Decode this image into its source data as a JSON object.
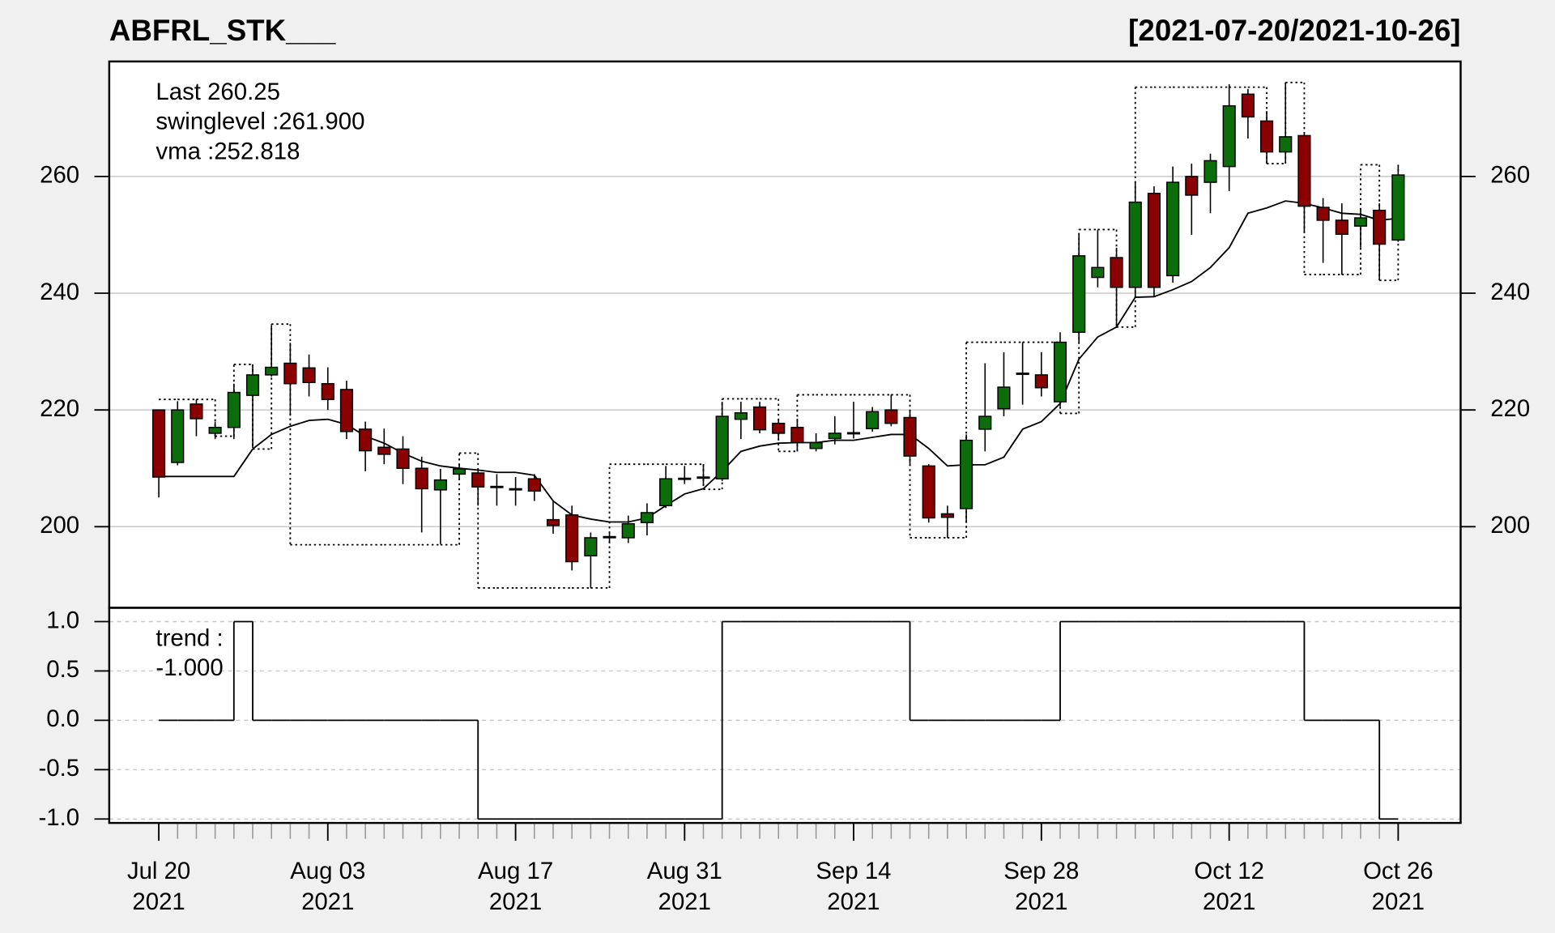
{
  "chart_data": [
    {
      "type": "candlestick",
      "title": "ABFRL_STK___",
      "subtitle": "[2021-07-20/2021-10-26]",
      "x": [
        "2021-07-20",
        "2021-07-22",
        "2021-07-23",
        "2021-07-26",
        "2021-07-27",
        "2021-07-28",
        "2021-07-29",
        "2021-07-30",
        "2021-08-02",
        "2021-08-03",
        "2021-08-04",
        "2021-08-05",
        "2021-08-06",
        "2021-08-09",
        "2021-08-10",
        "2021-08-11",
        "2021-08-12",
        "2021-08-13",
        "2021-08-16",
        "2021-08-17",
        "2021-08-18",
        "2021-08-20",
        "2021-08-23",
        "2021-08-24",
        "2021-08-25",
        "2021-08-26",
        "2021-08-27",
        "2021-08-30",
        "2021-08-31",
        "2021-09-01",
        "2021-09-02",
        "2021-09-03",
        "2021-09-06",
        "2021-09-07",
        "2021-09-08",
        "2021-09-09",
        "2021-09-13",
        "2021-09-14",
        "2021-09-15",
        "2021-09-16",
        "2021-09-17",
        "2021-09-20",
        "2021-09-21",
        "2021-09-22",
        "2021-09-23",
        "2021-09-24",
        "2021-09-27",
        "2021-09-28",
        "2021-09-29",
        "2021-09-30",
        "2021-10-01",
        "2021-10-04",
        "2021-10-05",
        "2021-10-06",
        "2021-10-07",
        "2021-10-08",
        "2021-10-11",
        "2021-10-12",
        "2021-10-13",
        "2021-10-14",
        "2021-10-18",
        "2021-10-19",
        "2021-10-20",
        "2021-10-21",
        "2021-10-22",
        "2021-10-25",
        "2021-10-26"
      ],
      "open": [
        220,
        211,
        221,
        216,
        217,
        222.5,
        226,
        228,
        227.2,
        224.5,
        223.5,
        216.7,
        213.6,
        213.3,
        210,
        206.3,
        209,
        209.2,
        206.9,
        206.5,
        208.2,
        201.2,
        202,
        195,
        198.1,
        198.1,
        200.7,
        203.6,
        208.1,
        208.3,
        208.2,
        218.4,
        220.5,
        217.7,
        217,
        213.4,
        215.1,
        215.9,
        216.8,
        220,
        218.7,
        210.4,
        202.2,
        203.1,
        216.7,
        220.2,
        226.1,
        226,
        221.4,
        233.3,
        242.7,
        246.1,
        241,
        257.1,
        243,
        260,
        259,
        261.7,
        274.1,
        269.5,
        264.2,
        267,
        254.7,
        252.5,
        251.5,
        254.2,
        249.1
      ],
      "high": [
        220,
        221.5,
        221.8,
        218,
        224.5,
        227.5,
        234.5,
        231.5,
        229.5,
        227.3,
        225,
        218,
        216.8,
        215.5,
        212,
        209.9,
        210.7,
        209.9,
        209,
        208.5,
        209,
        204.4,
        203.6,
        199,
        199,
        201.9,
        204,
        210.4,
        210.4,
        210.7,
        221.4,
        221.4,
        221.4,
        218.5,
        218.5,
        216,
        218.9,
        221.4,
        220.5,
        222.6,
        220,
        210.7,
        203.6,
        215.8,
        228,
        229.9,
        231.6,
        229.9,
        233.3,
        250,
        250.8,
        247.8,
        259.2,
        258.3,
        261.7,
        262.2,
        263.9,
        275.8,
        275,
        271.2,
        276.1,
        267.3,
        256.3,
        255.4,
        254.6,
        255.4,
        262
      ],
      "low": [
        205,
        210.5,
        215.5,
        215,
        215,
        213.5,
        225.7,
        219,
        222.3,
        220,
        215,
        209.5,
        210.7,
        207.3,
        199,
        197,
        208.2,
        203.6,
        203.6,
        203.6,
        204.4,
        198.8,
        192.5,
        189.5,
        197.2,
        197.2,
        198.5,
        203.2,
        207.3,
        207,
        207.8,
        215,
        216,
        215,
        212.9,
        212.9,
        214.1,
        215.1,
        216.3,
        217.2,
        210.7,
        200.7,
        198.1,
        200.7,
        212.9,
        218.9,
        220.9,
        222.3,
        220.6,
        231.6,
        241,
        234.2,
        239.3,
        239.3,
        241.8,
        250,
        253.7,
        257.5,
        266.5,
        262.2,
        262.2,
        250.5,
        245.2,
        243.2,
        247.8,
        242.2,
        248.8
      ],
      "close": [
        208.5,
        220,
        218.5,
        217,
        223,
        226,
        227.3,
        224.5,
        224.7,
        221.8,
        216.3,
        213,
        212.4,
        210,
        206.5,
        208,
        209.9,
        206.8,
        206.7,
        206.3,
        206.1,
        200.2,
        194,
        198.1,
        198.3,
        200.5,
        202.4,
        208.2,
        208.3,
        208.5,
        218.9,
        219.5,
        216.6,
        216,
        214.4,
        214.4,
        216,
        216.1,
        219.7,
        217.7,
        212.1,
        201.5,
        201.6,
        214.8,
        218.9,
        223.9,
        226.3,
        223.8,
        231.6,
        246.4,
        244.4,
        241,
        255.6,
        241,
        259,
        256.8,
        262.7,
        272.1,
        270.2,
        264.2,
        266.8,
        254.9,
        252.5,
        250.1,
        252.9,
        248.4,
        260.25
      ],
      "up_color": "#0b6e0b",
      "down_color": "#8b0000",
      "series": [
        {
          "name": "vma",
          "type": "line",
          "color": "#000000",
          "values": [
            208.6,
            208.6,
            208.6,
            208.6,
            208.6,
            213.3,
            215.8,
            217.2,
            218.2,
            218.4,
            217.5,
            215.5,
            214.3,
            212.6,
            211.2,
            210.4,
            210,
            209.7,
            209.3,
            209.3,
            208.8,
            204.4,
            202,
            201.3,
            200.8,
            200.8,
            201.5,
            203.6,
            205.6,
            206.5,
            209.5,
            212.9,
            213.8,
            214.3,
            214.4,
            214.4,
            214.8,
            214.8,
            215.3,
            215.8,
            215.8,
            213.4,
            210.4,
            210.6,
            210.6,
            211.9,
            216.7,
            218,
            221.1,
            228.7,
            232.5,
            234.2,
            239.3,
            239.4,
            240.6,
            242,
            244.4,
            247.8,
            253.7,
            254.6,
            255.8,
            255.4,
            254.6,
            253.7,
            253.5,
            252.5,
            252.818
          ]
        },
        {
          "name": "swinglevel",
          "type": "step",
          "color": "#000000",
          "dotted": true,
          "values": [
            221.8,
            221.8,
            221.8,
            215.5,
            227.8,
            213.3,
            234.7,
            196.9,
            196.9,
            196.9,
            196.9,
            196.9,
            196.9,
            196.9,
            196.9,
            196.9,
            212.6,
            189.5,
            189.5,
            189.5,
            189.5,
            189.5,
            189.5,
            189.5,
            210.7,
            210.7,
            210.7,
            210.7,
            210.7,
            206.4,
            221.9,
            221.9,
            221.9,
            212.9,
            222.6,
            222.6,
            222.6,
            222.6,
            222.6,
            222.6,
            198.1,
            198.1,
            198.1,
            231.6,
            231.6,
            231.6,
            231.6,
            231.6,
            219.4,
            250.9,
            250.9,
            234.2,
            275.3,
            275.3,
            275.3,
            275.3,
            275.3,
            275.3,
            275.3,
            262.2,
            276.1,
            243.2,
            243.2,
            243.2,
            262,
            242.2,
            261.9
          ]
        }
      ],
      "legend_text": [
        "Last 260.25",
        "swinglevel :261.900",
        "vma :252.818"
      ],
      "ylim": [
        186.1,
        279.7
      ],
      "yticks": [
        200,
        220,
        240,
        260
      ],
      "grid": true,
      "xticks": [
        {
          "value": "2021-07-20",
          "label": [
            "Jul 20",
            "2021"
          ]
        },
        {
          "value": "2021-08-03",
          "label": [
            "Aug 03",
            "2021"
          ]
        },
        {
          "value": "2021-08-17",
          "label": [
            "Aug 17",
            "2021"
          ]
        },
        {
          "value": "2021-08-31",
          "label": [
            "Aug 31",
            "2021"
          ]
        },
        {
          "value": "2021-09-14",
          "label": [
            "Sep 14",
            "2021"
          ]
        },
        {
          "value": "2021-09-28",
          "label": [
            "Sep 28",
            "2021"
          ]
        },
        {
          "value": "2021-10-12",
          "label": [
            "Oct 12",
            "2021"
          ]
        },
        {
          "value": "2021-10-26",
          "label": [
            "Oct 26",
            "2021"
          ]
        }
      ]
    },
    {
      "type": "step",
      "series": [
        {
          "name": "trend",
          "color": "#000000",
          "values": [
            0,
            0,
            0,
            0,
            1,
            0,
            0,
            0,
            0,
            0,
            0,
            0,
            0,
            0,
            0,
            0,
            0,
            -1,
            -1,
            -1,
            -1,
            -1,
            -1,
            -1,
            -1,
            -1,
            -1,
            -1,
            -1,
            -1,
            1,
            1,
            1,
            1,
            1,
            1,
            1,
            1,
            1,
            1,
            0,
            0,
            0,
            0,
            0,
            0,
            0,
            0,
            1,
            1,
            1,
            1,
            1,
            1,
            1,
            1,
            1,
            1,
            1,
            1,
            1,
            0,
            0,
            0,
            0,
            -1,
            -1
          ]
        }
      ],
      "legend_text": [
        "trend :",
        "-1.000"
      ],
      "ylim": [
        -1.04,
        1.14
      ],
      "yticks": [
        {
          "value": -1,
          "label": "-1.0"
        },
        -0.5,
        {
          "value": 0,
          "label": "0.0"
        },
        0.5,
        {
          "value": 1,
          "label": "1.0"
        }
      ],
      "grid": true
    }
  ]
}
